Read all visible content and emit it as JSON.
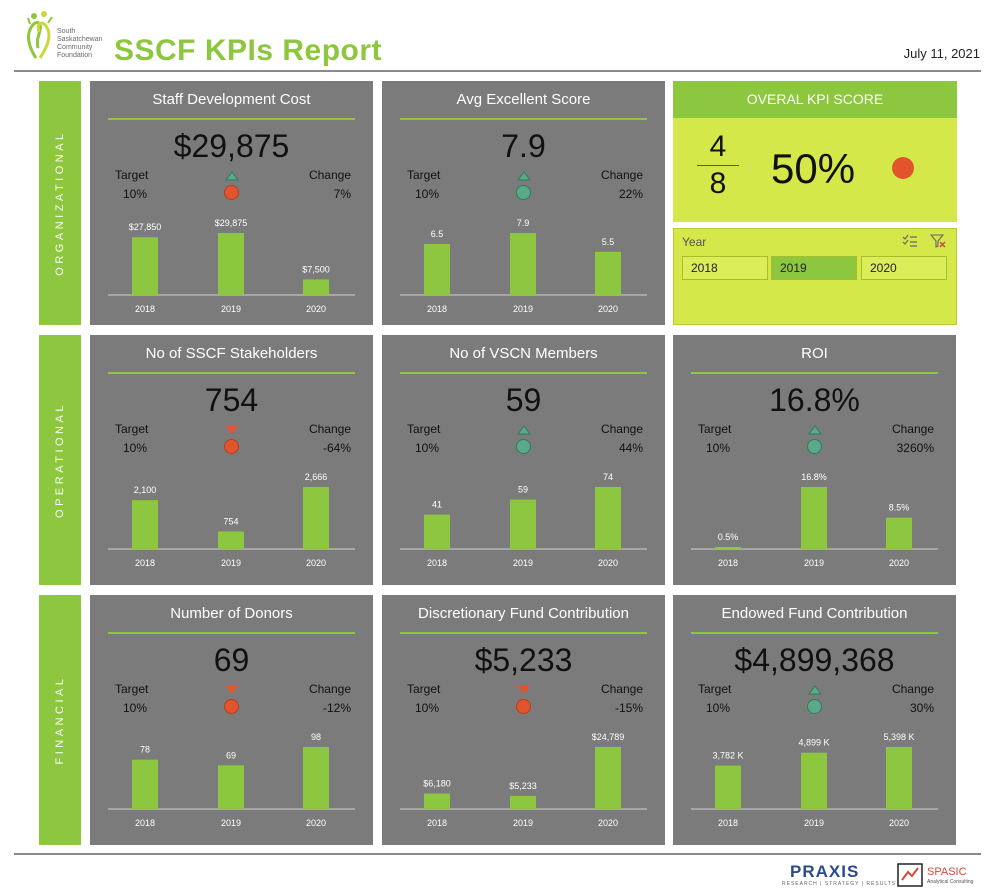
{
  "header": {
    "logo_lines": [
      "South",
      "Saskatchewan",
      "Community",
      "Foundation"
    ],
    "title": "SSCF KPIs Report",
    "date": "July 11, 2021"
  },
  "sections": [
    "ORGANIZATIONAL",
    "OPERATIONAL",
    "FINANCIAL"
  ],
  "labels": {
    "target": "Target",
    "change": "Change"
  },
  "colors": {
    "green": "#8dc63f",
    "lime": "#d4e84a",
    "card": "#7b7b7b",
    "red": "#e2542d",
    "teal": "#5aaa8a"
  },
  "overall": {
    "title": "OVERAL KPI SCORE",
    "numerator": "4",
    "denominator": "8",
    "percent": "50%",
    "status": "red"
  },
  "slicer": {
    "title": "Year",
    "options": [
      "2018",
      "2019",
      "2020"
    ],
    "selected": "2019",
    "icons": [
      "multi-select-icon",
      "clear-filter-icon"
    ]
  },
  "chart_data": [
    {
      "type": "bar",
      "title": "Staff Development Cost",
      "headline": "$29,875",
      "target": "10%",
      "change": "7%",
      "trend": "up",
      "status": "red",
      "categories": [
        "2018",
        "2019",
        "2020"
      ],
      "values": [
        27850,
        29875,
        7500
      ],
      "value_labels": [
        "$27,850",
        "$29,875",
        "$7,500"
      ]
    },
    {
      "type": "bar",
      "title": "Avg Excellent Score",
      "headline": "7.9",
      "target": "10%",
      "change": "22%",
      "trend": "up",
      "status": "teal",
      "categories": [
        "2018",
        "2019",
        "2020"
      ],
      "values": [
        6.5,
        7.9,
        5.5
      ],
      "value_labels": [
        "6.5",
        "7.9",
        "5.5"
      ]
    },
    {
      "type": "bar",
      "title": "No of SSCF Stakeholders",
      "headline": "754",
      "target": "10%",
      "change": "-64%",
      "trend": "down",
      "status": "red",
      "categories": [
        "2018",
        "2019",
        "2020"
      ],
      "values": [
        2100,
        754,
        2666
      ],
      "value_labels": [
        "2,100",
        "754",
        "2,666"
      ]
    },
    {
      "type": "bar",
      "title": "No of VSCN Members",
      "headline": "59",
      "target": "10%",
      "change": "44%",
      "trend": "up",
      "status": "teal",
      "categories": [
        "2018",
        "2019",
        "2020"
      ],
      "values": [
        41,
        59,
        74
      ],
      "value_labels": [
        "41",
        "59",
        "74"
      ]
    },
    {
      "type": "bar",
      "title": "ROI",
      "headline": "16.8%",
      "target": "10%",
      "change": "3260%",
      "trend": "up",
      "status": "teal",
      "categories": [
        "2018",
        "2019",
        "2020"
      ],
      "values": [
        0.5,
        16.8,
        8.5
      ],
      "value_labels": [
        "0.5%",
        "16.8%",
        "8.5%"
      ]
    },
    {
      "type": "bar",
      "title": "Number of Donors",
      "headline": "69",
      "target": "10%",
      "change": "-12%",
      "trend": "down",
      "status": "red",
      "categories": [
        "2018",
        "2019",
        "2020"
      ],
      "values": [
        78,
        69,
        98
      ],
      "value_labels": [
        "78",
        "69",
        "98"
      ]
    },
    {
      "type": "bar",
      "title": "Discretionary Fund Contribution",
      "headline": "$5,233",
      "target": "10%",
      "change": "-15%",
      "trend": "down",
      "status": "red",
      "categories": [
        "2018",
        "2019",
        "2020"
      ],
      "values": [
        6180,
        5233,
        24789
      ],
      "value_labels": [
        "$6,180",
        "$5,233",
        "$24,789"
      ]
    },
    {
      "type": "bar",
      "title": "Endowed Fund Contribution",
      "headline": "$4,899,368",
      "target": "10%",
      "change": "30%",
      "trend": "up",
      "status": "teal",
      "categories": [
        "2018",
        "2019",
        "2020"
      ],
      "values": [
        3782,
        4899,
        5398
      ],
      "value_labels": [
        "3,782 K",
        "4,899 K",
        "5,398 K"
      ]
    }
  ],
  "footer": {
    "brand1": "PRAXIS",
    "brand1_sub": "RESEARCH | STRATEGY | RESULTS",
    "brand2": "SPASIC",
    "brand2_sub": "Analytical Consulting"
  }
}
